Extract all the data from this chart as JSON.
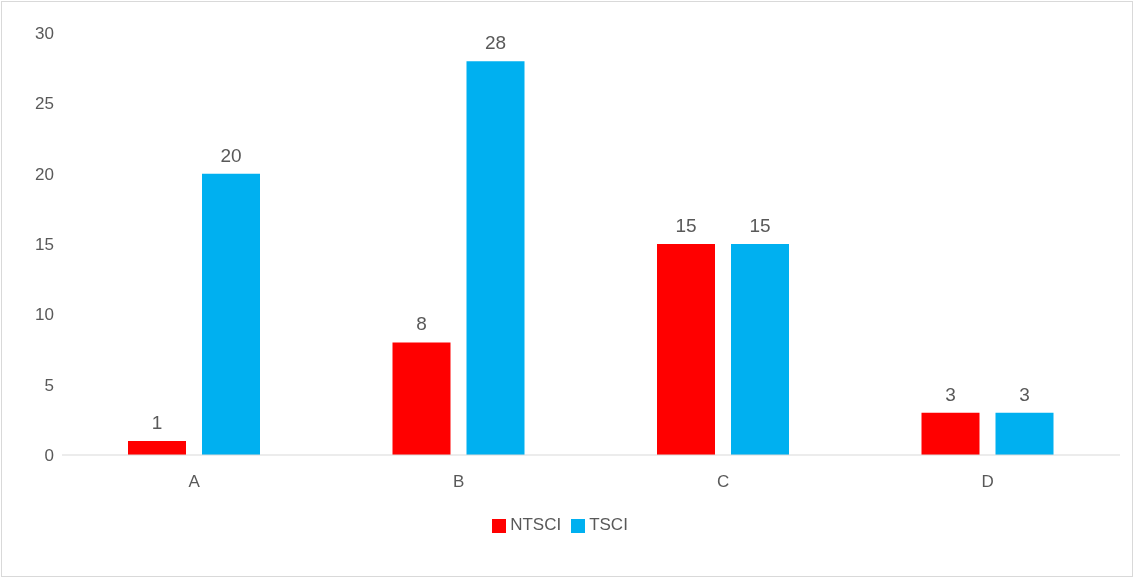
{
  "chart_data": {
    "type": "bar",
    "categories": [
      "A",
      "B",
      "C",
      "D"
    ],
    "series": [
      {
        "name": "NTSCI",
        "color": "#ff0000",
        "values": [
          1,
          8,
          15,
          3
        ]
      },
      {
        "name": "TSCI",
        "color": "#00b0f0",
        "values": [
          20,
          28,
          15,
          3
        ]
      }
    ],
    "ylim": [
      0,
      30
    ],
    "yticks": [
      0,
      5,
      10,
      15,
      20,
      25,
      30
    ],
    "grid": false,
    "legend": "bottom",
    "data_labels": true
  }
}
